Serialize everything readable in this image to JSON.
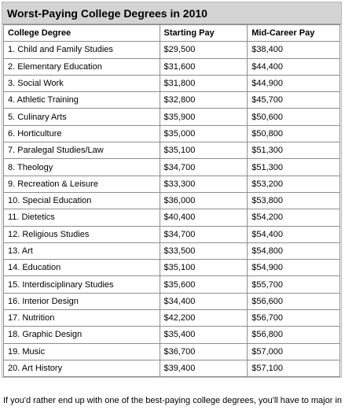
{
  "table": {
    "title": "Worst-Paying College Degrees in 2010",
    "headers": [
      "College Degree",
      "Starting Pay",
      "Mid-Career Pay"
    ],
    "rows": [
      [
        "1. Child and Family Studies",
        "$29,500",
        "$38,400"
      ],
      [
        "2. Elementary Education",
        "$31,600",
        "$44,400"
      ],
      [
        "3. Social Work",
        "$31,800",
        "$44,900"
      ],
      [
        "4. Athletic Training",
        "$32,800",
        "$45,700"
      ],
      [
        "5. Culinary Arts",
        "$35,900",
        "$50,600"
      ],
      [
        "6. Horticulture",
        "$35,000",
        "$50,800"
      ],
      [
        "7. Paralegal Studies/Law",
        "$35,100",
        "$51,300"
      ],
      [
        "8. Theology",
        "$34,700",
        "$51,300"
      ],
      [
        "9. Recreation & Leisure",
        "$33,300",
        "$53,200"
      ],
      [
        "10. Special Education",
        "$36,000",
        "$53,800"
      ],
      [
        "11. Dietetics",
        "$40,400",
        "$54,200"
      ],
      [
        "12. Religious Studies",
        "$34,700",
        "$54,400"
      ],
      [
        "13. Art",
        "$33,500",
        "$54,800"
      ],
      [
        "14. Education",
        "$35,100",
        "$54,900"
      ],
      [
        "15. Interdisciplinary Studies",
        "$35,600",
        "$55,700"
      ],
      [
        "16. Interior Design",
        "$34,400",
        "$56,600"
      ],
      [
        "17. Nutrition",
        "$42,200",
        "$56,700"
      ],
      [
        "18. Graphic Design",
        "$35,400",
        "$56,800"
      ],
      [
        "19. Music",
        "$36,700",
        "$57,000"
      ],
      [
        "20. Art History",
        "$39,400",
        "$57,100"
      ]
    ]
  },
  "footer_text": "If you'd rather end up with one of the best-paying college degrees, you'll have to major in"
}
